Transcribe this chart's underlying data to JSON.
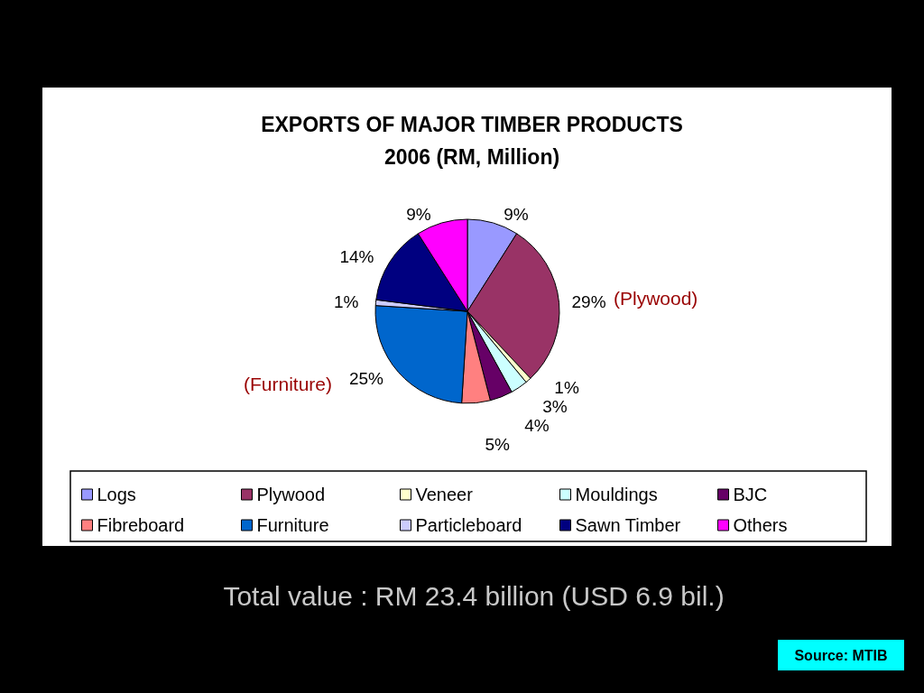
{
  "chart_data": {
    "type": "pie",
    "title": "EXPORTS OF MAJOR TIMBER PRODUCTS\n2006 (RM, Million)",
    "categories": [
      "Logs",
      "Plywood",
      "Veneer",
      "Mouldings",
      "BJC",
      "Fibreboard",
      "Furniture",
      "Particleboard",
      "Sawn Timber",
      "Others"
    ],
    "values": [
      9,
      29,
      1,
      3,
      4,
      5,
      25,
      1,
      14,
      9
    ],
    "colors": [
      "#9999ff",
      "#993366",
      "#ffffcc",
      "#ccffff",
      "#660066",
      "#ff8080",
      "#0066cc",
      "#ccccff",
      "#000080",
      "#ff00ff"
    ],
    "value_labels": [
      "9%",
      "29%",
      "1%",
      "3%",
      "4%",
      "5%",
      "25%",
      "1%",
      "14%",
      "9%"
    ],
    "legend": "bottom",
    "annotations": [
      "(Plywood)",
      "(Furniture)",
      "Total value : RM 23.4 billion (USD 6.9 bil.)",
      "Source: MTIB"
    ]
  }
}
